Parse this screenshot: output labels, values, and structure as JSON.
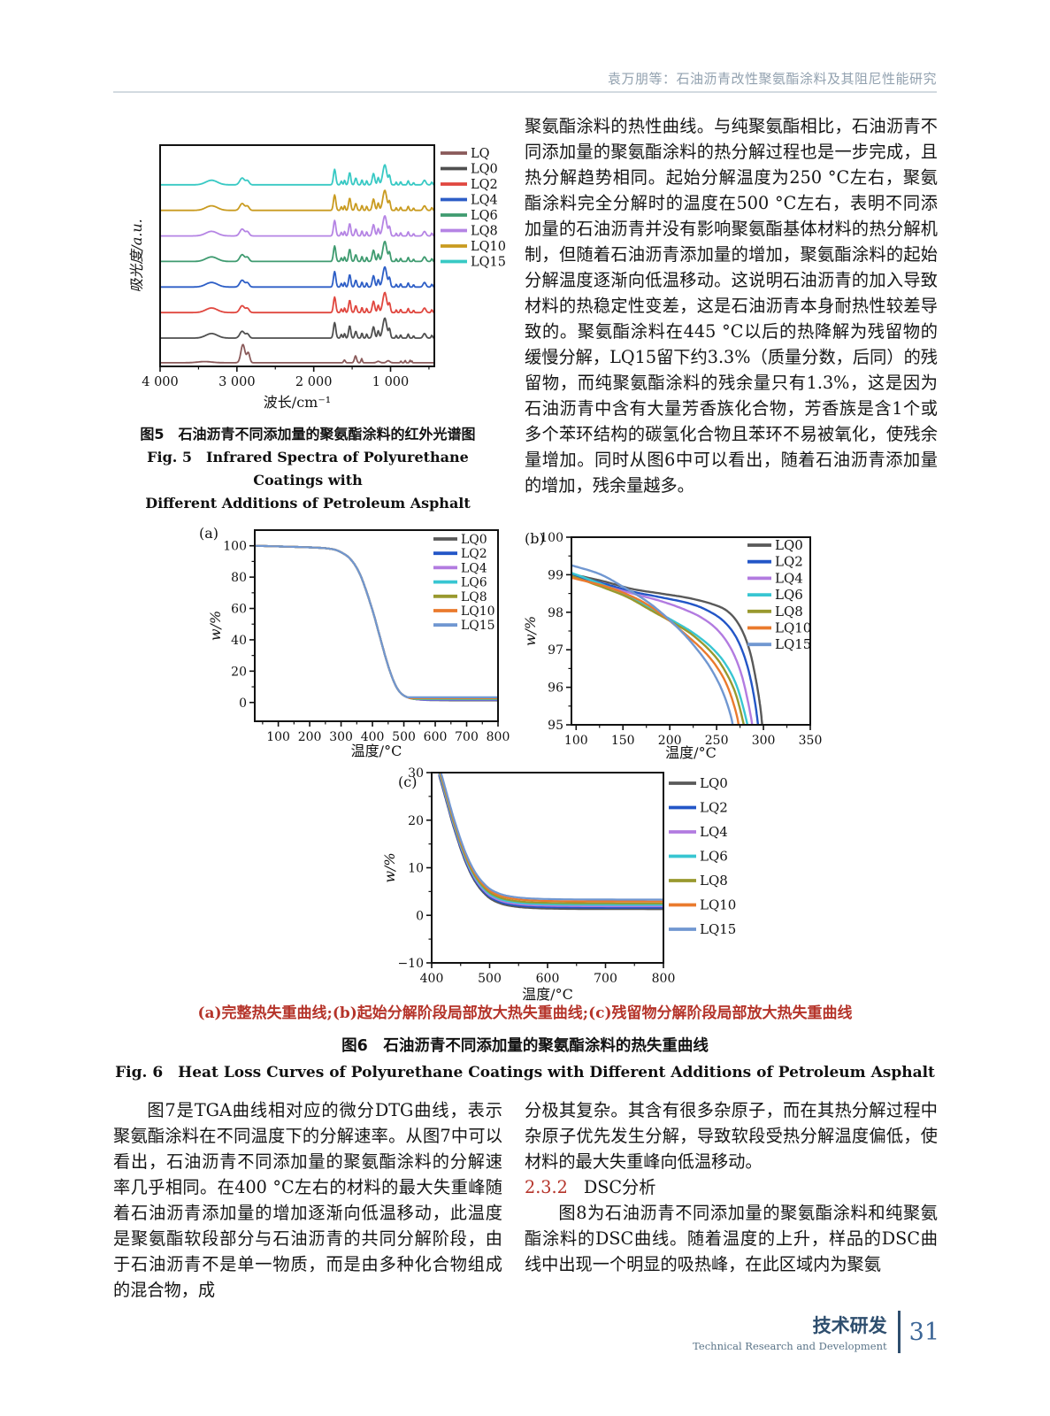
{
  "header": {
    "running_title": "袁万朋等：石油沥青改性聚氨酯涂料及其阻尼性能研究"
  },
  "footer": {
    "section_cn": "技术研发",
    "section_en": "Technical Research and Development",
    "page_number": "31"
  },
  "text": {
    "right_top": "聚氨酯涂料的热性曲线。与纯聚氨酯相比，石油沥青不同添加量的聚氨酯涂料的热分解过程也是一步完成，且热分解趋势相同。起始分解温度为250 °C左右，聚氨酯涂料完全分解时的温度在500 °C左右，表明不同添加量的石油沥青并没有影响聚氨酯基体材料的热分解机制，但随着石油沥青添加量的增加，聚氨酯涂料的起始分解温度逐渐向低温移动。这说明石油沥青的加入导致材料的热稳定性变差，这是石油沥青本身耐热性较差导致的。聚氨酯涂料在445 °C以后的热降解为残留物的缓慢分解，LQ15留下约3.3%（质量分数，后同）的残留物，而纯聚氨酯涂料的残余量只有1.3%，这是因为石油沥青中含有大量芳香族化合物，芳香族是含1个或多个苯环结构的碳氢化合物且苯环不易被氧化，使残余量增加。同时从图6中可以看出，随着石油沥青添加量的增加，残余量越多。",
    "bottom_left": "图7是TGA曲线相对应的微分DTG曲线，表示聚氨酯涂料在不同温度下的分解速率。从图7中可以看出，石油沥青不同添加量的聚氨酯涂料的分解速率几乎相同。在400 °C左右的材料的最大失重峰随着石油沥青添加量的增加逐渐向低温移动，此温度是聚氨酯软段部分与石油沥青的共同分解阶段，由于石油沥青不是单一物质，而是由多种化合物组成的混合物，成",
    "bottom_right_p1": "分极其复杂。其含有很多杂原子，而在其热分解过程中杂原子优先发生分解，导致软段受热分解温度偏低，使材料的最大失重峰向低温移动。",
    "heading_num": "2.3.2",
    "heading_title": "DSC分析",
    "bottom_right_p2": "图8为石油沥青不同添加量的聚氨酯涂料和纯聚氨酯涂料的DSC曲线。随着温度的上升，样品的DSC曲线中出现一个明显的吸热峰，在此区域内为聚氨"
  },
  "captions": {
    "fig5_cn": "图5　石油沥青不同添加量的聚氨酯涂料的红外光谱图",
    "fig5_en1": "Fig. 5　Infrared Spectra of Polyurethane Coatings with",
    "fig5_en2": "Different Additions of Petroleum Asphalt",
    "fig6_note": "(a)完整热失重曲线;(b)起始分解阶段局部放大热失重曲线;(c)残留物分解阶段局部放大热失重曲线",
    "fig6_cn": "图6　石油沥青不同添加量的聚氨酯涂料的热失重曲线",
    "fig6_en": "Fig. 6　Heat Loss Curves of Polyurethane Coatings with Different Additions of Petroleum Asphalt"
  },
  "chart_data": [
    {
      "id": "fig5",
      "type": "line",
      "kind": "peaks",
      "title": "石油沥青不同添加量的聚氨酯涂料的红外光谱图",
      "xlabel": "波长/cm⁻¹",
      "ylabel": "吸光度/a.u.",
      "xlim": [
        4000,
        430
      ],
      "ylim": [
        0,
        4.85
      ],
      "xrev": true,
      "xticks": [
        {
          "v": 4000,
          "label": "4 000"
        },
        {
          "v": 3000,
          "label": "3 000"
        },
        {
          "v": 2000,
          "label": "2 000"
        },
        {
          "v": 1000,
          "label": "1 000"
        }
      ],
      "xminor": [
        3500,
        2500,
        1500,
        500
      ],
      "yticks": [],
      "yminor": [],
      "legend_position": "right-outside",
      "peak_sets": {
        "pu": [
          [
            3330,
            75,
            0.1
          ],
          [
            2932,
            30,
            0.15
          ],
          [
            2862,
            22,
            0.09
          ],
          [
            1728,
            15,
            0.34
          ],
          [
            1640,
            10,
            0.08
          ],
          [
            1598,
            9,
            0.1
          ],
          [
            1532,
            14,
            0.27
          ],
          [
            1452,
            13,
            0.15
          ],
          [
            1372,
            10,
            0.11
          ],
          [
            1310,
            9,
            0.09
          ],
          [
            1222,
            16,
            0.25
          ],
          [
            1160,
            12,
            0.16
          ],
          [
            1075,
            26,
            0.44
          ],
          [
            1013,
            12,
            0.19
          ],
          [
            926,
            8,
            0.06
          ],
          [
            868,
            9,
            0.07
          ],
          [
            770,
            10,
            0.09
          ],
          [
            700,
            8,
            0.05
          ],
          [
            558,
            18,
            0.1
          ],
          [
            462,
            10,
            0.06
          ]
        ],
        "lq": [
          [
            3420,
            90,
            0.025
          ],
          [
            2922,
            26,
            0.4
          ],
          [
            2852,
            19,
            0.22
          ],
          [
            1600,
            11,
            0.06
          ],
          [
            1456,
            14,
            0.15
          ],
          [
            1376,
            9,
            0.09
          ],
          [
            1160,
            20,
            0.03
          ],
          [
            1030,
            20,
            0.045
          ],
          [
            865,
            7,
            0.035
          ],
          [
            810,
            7,
            0.05
          ],
          [
            745,
            7,
            0.055
          ],
          [
            722,
            5,
            0.04
          ]
        ]
      },
      "series": [
        {
          "name": "LQ",
          "color": "#8a5a5a",
          "offset": 0.08,
          "peak_set": "lq"
        },
        {
          "name": "LQ0",
          "color": "#4f4f4f",
          "offset": 0.62,
          "peak_set": "pu"
        },
        {
          "name": "LQ2",
          "color": "#e0473f",
          "offset": 1.18,
          "peak_set": "pu"
        },
        {
          "name": "LQ4",
          "color": "#2d5ec6",
          "offset": 1.74,
          "peak_set": "pu"
        },
        {
          "name": "LQ6",
          "color": "#3f9b70",
          "offset": 2.3,
          "peak_set": "pu"
        },
        {
          "name": "LQ8",
          "color": "#b584e4",
          "offset": 2.86,
          "peak_set": "pu"
        },
        {
          "name": "LQ10",
          "color": "#c99b20",
          "offset": 3.42,
          "peak_set": "pu"
        },
        {
          "name": "LQ15",
          "color": "#38c9c4",
          "offset": 3.98,
          "peak_set": "pu"
        }
      ]
    },
    {
      "id": "fig6a",
      "type": "line",
      "kind": "shared-base",
      "panel": "(a)",
      "xlabel": "温度/°C",
      "ylabel": "w/%",
      "xlim": [
        25,
        800
      ],
      "ylim": [
        -12,
        110
      ],
      "xticks": [
        {
          "v": 100
        },
        {
          "v": 200
        },
        {
          "v": 300
        },
        {
          "v": 400
        },
        {
          "v": 500
        },
        {
          "v": 600
        },
        {
          "v": 700
        },
        {
          "v": 800
        }
      ],
      "xminor": [
        50,
        150,
        250,
        350,
        450,
        550,
        650,
        750
      ],
      "yticks": [
        {
          "v": 0
        },
        {
          "v": 20
        },
        {
          "v": 40
        },
        {
          "v": 60
        },
        {
          "v": 80
        },
        {
          "v": 100
        }
      ],
      "yminor": [
        10,
        30,
        50,
        70,
        90
      ],
      "legend_position": "inside-top-right",
      "base_points": [
        [
          25,
          100
        ],
        [
          100,
          99.6
        ],
        [
          150,
          99.3
        ],
        [
          200,
          99.0
        ],
        [
          240,
          98.6
        ],
        [
          265,
          98.1
        ],
        [
          285,
          97.2
        ],
        [
          305,
          95.3
        ],
        [
          325,
          92.5
        ],
        [
          345,
          87.5
        ],
        [
          362,
          81
        ],
        [
          378,
          72.5
        ],
        [
          392,
          64
        ],
        [
          405,
          55.5
        ],
        [
          416,
          47.5
        ],
        [
          427,
          39.5
        ],
        [
          438,
          31.5
        ],
        [
          449,
          24
        ],
        [
          460,
          17.5
        ],
        [
          471,
          12
        ],
        [
          482,
          8
        ],
        [
          494,
          5.3
        ],
        [
          508,
          3.6
        ],
        [
          524,
          2.6
        ],
        [
          545,
          1.95
        ],
        [
          570,
          1.6
        ],
        [
          610,
          1.42
        ],
        [
          680,
          1.33
        ],
        [
          800,
          1.3
        ]
      ],
      "series": [
        {
          "name": "LQ0",
          "color": "#595959",
          "residue": 1.3
        },
        {
          "name": "LQ2",
          "color": "#2356c7",
          "residue": 1.6
        },
        {
          "name": "LQ4",
          "color": "#b27be0",
          "residue": 1.9
        },
        {
          "name": "LQ6",
          "color": "#38c6d2",
          "residue": 2.2
        },
        {
          "name": "LQ8",
          "color": "#99992e",
          "residue": 2.5
        },
        {
          "name": "LQ10",
          "color": "#ea7a2d",
          "residue": 2.9
        },
        {
          "name": "LQ15",
          "color": "#7097d1",
          "residue": 3.3
        }
      ]
    },
    {
      "id": "fig6b",
      "type": "line",
      "kind": "multi",
      "panel": "(b)",
      "xlabel": "温度/°C",
      "ylabel": "w/%",
      "xlim": [
        95,
        350
      ],
      "ylim": [
        95,
        100
      ],
      "xticks": [
        {
          "v": 100
        },
        {
          "v": 150
        },
        {
          "v": 200
        },
        {
          "v": 250
        },
        {
          "v": 300
        },
        {
          "v": 350
        }
      ],
      "xminor": [
        125,
        175,
        225,
        275,
        325
      ],
      "yticks": [
        {
          "v": 95
        },
        {
          "v": 96
        },
        {
          "v": 97
        },
        {
          "v": 98
        },
        {
          "v": 99
        },
        {
          "v": 100
        }
      ],
      "yminor": [
        95.5,
        96.5,
        97.5,
        98.5,
        99.5
      ],
      "legend_position": "inside-top-right",
      "series": [
        {
          "name": "LQ0",
          "color": "#595959",
          "points": [
            [
              95,
              99.02
            ],
            [
              130,
              98.82
            ],
            [
              160,
              98.62
            ],
            [
              190,
              98.5
            ],
            [
              220,
              98.38
            ],
            [
              245,
              98.22
            ],
            [
              262,
              98.02
            ],
            [
              275,
              97.62
            ],
            [
              285,
              97.0
            ],
            [
              292,
              96.2
            ],
            [
              297,
              95.4
            ],
            [
              300,
              94.6
            ]
          ]
        },
        {
          "name": "LQ2",
          "color": "#2356c7",
          "points": [
            [
              95,
              98.98
            ],
            [
              130,
              98.76
            ],
            [
              160,
              98.55
            ],
            [
              190,
              98.4
            ],
            [
              220,
              98.24
            ],
            [
              240,
              98.05
            ],
            [
              258,
              97.75
            ],
            [
              272,
              97.28
            ],
            [
              283,
              96.55
            ],
            [
              291,
              95.6
            ],
            [
              296,
              94.6
            ]
          ]
        },
        {
          "name": "LQ4",
          "color": "#b27be0",
          "points": [
            [
              95,
              98.93
            ],
            [
              130,
              98.7
            ],
            [
              160,
              98.5
            ],
            [
              190,
              98.3
            ],
            [
              215,
              98.08
            ],
            [
              235,
              97.84
            ],
            [
              252,
              97.5
            ],
            [
              266,
              97.0
            ],
            [
              277,
              96.3
            ],
            [
              286,
              95.3
            ],
            [
              290,
              94.6
            ]
          ]
        },
        {
          "name": "LQ6",
          "color": "#38c6d2",
          "points": [
            [
              95,
              99.05
            ],
            [
              130,
              98.72
            ],
            [
              155,
              98.45
            ],
            [
              180,
              98.1
            ],
            [
              205,
              97.75
            ],
            [
              225,
              97.45
            ],
            [
              245,
              97.05
            ],
            [
              260,
              96.6
            ],
            [
              272,
              96.0
            ],
            [
              282,
              95.1
            ],
            [
              285,
              94.6
            ]
          ]
        },
        {
          "name": "LQ8",
          "color": "#99992e",
          "points": [
            [
              95,
              98.97
            ],
            [
              130,
              98.65
            ],
            [
              155,
              98.4
            ],
            [
              180,
              98.05
            ],
            [
              205,
              97.7
            ],
            [
              225,
              97.38
            ],
            [
              245,
              96.92
            ],
            [
              258,
              96.48
            ],
            [
              270,
              95.85
            ],
            [
              279,
              95.0
            ],
            [
              281,
              94.6
            ]
          ]
        },
        {
          "name": "LQ10",
          "color": "#ea7a2d",
          "points": [
            [
              95,
              98.92
            ],
            [
              130,
              98.7
            ],
            [
              155,
              98.47
            ],
            [
              175,
              98.22
            ],
            [
              195,
              97.87
            ],
            [
              215,
              97.45
            ],
            [
              235,
              97.0
            ],
            [
              250,
              96.55
            ],
            [
              262,
              96.0
            ],
            [
              272,
              95.2
            ],
            [
              275,
              94.6
            ]
          ]
        },
        {
          "name": "LQ15",
          "color": "#7097d1",
          "points": [
            [
              95,
              99.25
            ],
            [
              125,
              99.02
            ],
            [
              150,
              98.68
            ],
            [
              175,
              98.3
            ],
            [
              195,
              97.9
            ],
            [
              215,
              97.42
            ],
            [
              232,
              96.92
            ],
            [
              245,
              96.45
            ],
            [
              257,
              95.85
            ],
            [
              266,
              95.15
            ],
            [
              269,
              94.6
            ]
          ]
        }
      ]
    },
    {
      "id": "fig6c",
      "type": "line",
      "kind": "decay",
      "panel": "(c)",
      "xlabel": "温度/°C",
      "ylabel": "w/%",
      "xlim": [
        400,
        800
      ],
      "ylim": [
        -10,
        30
      ],
      "xticks": [
        {
          "v": 400
        },
        {
          "v": 500
        },
        {
          "v": 600
        },
        {
          "v": 700
        },
        {
          "v": 800
        }
      ],
      "xminor": [
        450,
        550,
        650,
        750
      ],
      "yticks": [
        {
          "v": -10,
          "label": "−10"
        },
        {
          "v": 0
        },
        {
          "v": 10
        },
        {
          "v": 20
        },
        {
          "v": 30
        }
      ],
      "yminor": [
        -5,
        5,
        15,
        25
      ],
      "legend_position": "right-outside",
      "base_points": [
        [
          413,
          28
        ],
        [
          420,
          25
        ],
        [
          428,
          21.5
        ],
        [
          436,
          18
        ],
        [
          445,
          14.5
        ],
        [
          454,
          11.3
        ],
        [
          463,
          8.6
        ],
        [
          472,
          6.4
        ],
        [
          481,
          4.7
        ],
        [
          490,
          3.4
        ],
        [
          500,
          2.3
        ],
        [
          512,
          1.5
        ],
        [
          525,
          0.95
        ],
        [
          540,
          0.6
        ],
        [
          560,
          0.33
        ],
        [
          590,
          0.15
        ],
        [
          640,
          0.05
        ],
        [
          720,
          0.01
        ],
        [
          800,
          0
        ]
      ],
      "series": [
        {
          "name": "LQ0",
          "color": "#595959",
          "residue": 1.3
        },
        {
          "name": "LQ2",
          "color": "#2356c7",
          "residue": 1.6
        },
        {
          "name": "LQ4",
          "color": "#b27be0",
          "residue": 1.9
        },
        {
          "name": "LQ6",
          "color": "#38c6d2",
          "residue": 2.2
        },
        {
          "name": "LQ8",
          "color": "#99992e",
          "residue": 2.5
        },
        {
          "name": "LQ10",
          "color": "#ea7a2d",
          "residue": 2.9
        },
        {
          "name": "LQ15",
          "color": "#7097d1",
          "residue": 3.3
        }
      ]
    }
  ]
}
